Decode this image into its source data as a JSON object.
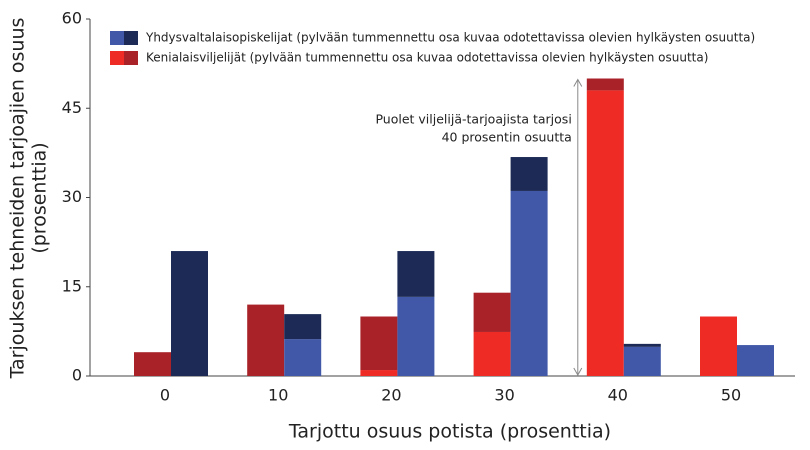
{
  "chart_data": {
    "type": "stacked-grouped-bar",
    "y_label": [
      "Tarjouksen tehneiden tarjoajien osuus",
      "(prosenttia)"
    ],
    "x_label": "Tarjottu osuus potista (prosenttia)",
    "categories": [
      0,
      10,
      20,
      30,
      40,
      50
    ],
    "ylim": [
      0,
      60
    ],
    "yticks": [
      0,
      15,
      30,
      45,
      60
    ],
    "groups": [
      {
        "name": "Kenialaisviljelijät (pylvään tummennettu osa kuvaa odotettavissa olevien hylkäysten osuutta)",
        "color": "#ee2b24",
        "rejected_color": "#a82228",
        "values": [
          0,
          0,
          1,
          7.4,
          48,
          10
        ],
        "rejected_values": [
          4,
          12,
          9,
          6.6,
          2,
          0
        ]
      },
      {
        "name": "Yhdysvaltalaisopiskelijat (pylvään tummennettu osa kuvaa odotettavissa olevien hylkäysten osuutta)",
        "color": "#4158a8",
        "rejected_color": "#1c2a55",
        "values": [
          0,
          6.2,
          13.3,
          31.1,
          4.9,
          5.2
        ],
        "rejected_values": [
          21,
          4.2,
          7.7,
          5.7,
          0.5,
          0
        ]
      }
    ],
    "legend_order": [
      1,
      0
    ],
    "annotation": [
      "Puolet viljelijä-tarjoajista tarjosi",
      "40 prosentin osuutta"
    ]
  }
}
